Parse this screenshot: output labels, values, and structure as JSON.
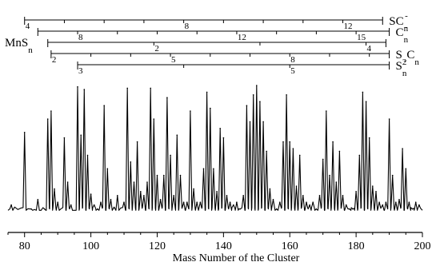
{
  "chart_data": {
    "type": "line",
    "title": "",
    "xlabel": "Mass Number of the Cluster",
    "ylabel": "",
    "xlim": [
      75,
      200
    ],
    "x_ticks": [
      80,
      100,
      120,
      140,
      160,
      180,
      200
    ],
    "x_tick_labels": [
      "80",
      "100",
      "120",
      "140",
      "160",
      "180",
      "200"
    ],
    "ylim": [
      0,
      1
    ],
    "grid": false,
    "peaks": [
      {
        "x": 76,
        "y": 0.08
      },
      {
        "x": 80,
        "y": 0.62
      },
      {
        "x": 82,
        "y": 0.05
      },
      {
        "x": 84,
        "y": 0.12
      },
      {
        "x": 86,
        "y": 0.05
      },
      {
        "x": 87,
        "y": 0.72
      },
      {
        "x": 88,
        "y": 0.78
      },
      {
        "x": 89,
        "y": 0.2
      },
      {
        "x": 90,
        "y": 0.1
      },
      {
        "x": 92,
        "y": 0.58
      },
      {
        "x": 93,
        "y": 0.25
      },
      {
        "x": 94,
        "y": 0.08
      },
      {
        "x": 96,
        "y": 0.96
      },
      {
        "x": 97,
        "y": 0.6
      },
      {
        "x": 98,
        "y": 0.94
      },
      {
        "x": 99,
        "y": 0.45
      },
      {
        "x": 100,
        "y": 0.16
      },
      {
        "x": 101,
        "y": 0.08
      },
      {
        "x": 102,
        "y": 0.05
      },
      {
        "x": 103,
        "y": 0.1
      },
      {
        "x": 104,
        "y": 0.82
      },
      {
        "x": 105,
        "y": 0.35
      },
      {
        "x": 106,
        "y": 0.12
      },
      {
        "x": 108,
        "y": 0.15
      },
      {
        "x": 110,
        "y": 0.1
      },
      {
        "x": 111,
        "y": 0.95
      },
      {
        "x": 112,
        "y": 0.4
      },
      {
        "x": 113,
        "y": 0.25
      },
      {
        "x": 114,
        "y": 0.55
      },
      {
        "x": 115,
        "y": 0.18
      },
      {
        "x": 116,
        "y": 0.15
      },
      {
        "x": 117,
        "y": 0.25
      },
      {
        "x": 118,
        "y": 0.95
      },
      {
        "x": 119,
        "y": 0.72
      },
      {
        "x": 120,
        "y": 0.3
      },
      {
        "x": 121,
        "y": 0.12
      },
      {
        "x": 122,
        "y": 0.3
      },
      {
        "x": 123,
        "y": 0.88
      },
      {
        "x": 124,
        "y": 0.45
      },
      {
        "x": 125,
        "y": 0.15
      },
      {
        "x": 126,
        "y": 0.6
      },
      {
        "x": 127,
        "y": 0.3
      },
      {
        "x": 128,
        "y": 0.1
      },
      {
        "x": 129,
        "y": 0.1
      },
      {
        "x": 130,
        "y": 0.78
      },
      {
        "x": 131,
        "y": 0.2
      },
      {
        "x": 132,
        "y": 0.1
      },
      {
        "x": 133,
        "y": 0.1
      },
      {
        "x": 134,
        "y": 0.35
      },
      {
        "x": 135,
        "y": 0.92
      },
      {
        "x": 136,
        "y": 0.8
      },
      {
        "x": 137,
        "y": 0.35
      },
      {
        "x": 138,
        "y": 0.18
      },
      {
        "x": 139,
        "y": 0.65
      },
      {
        "x": 140,
        "y": 0.58
      },
      {
        "x": 141,
        "y": 0.15
      },
      {
        "x": 142,
        "y": 0.1
      },
      {
        "x": 143,
        "y": 0.08
      },
      {
        "x": 144,
        "y": 0.1
      },
      {
        "x": 145,
        "y": 0.05
      },
      {
        "x": 146,
        "y": 0.15
      },
      {
        "x": 147,
        "y": 0.82
      },
      {
        "x": 148,
        "y": 0.7
      },
      {
        "x": 149,
        "y": 0.9
      },
      {
        "x": 150,
        "y": 0.97
      },
      {
        "x": 151,
        "y": 0.85
      },
      {
        "x": 152,
        "y": 0.7
      },
      {
        "x": 153,
        "y": 0.48
      },
      {
        "x": 154,
        "y": 0.2
      },
      {
        "x": 155,
        "y": 0.12
      },
      {
        "x": 156,
        "y": 0.05
      },
      {
        "x": 157,
        "y": 0.1
      },
      {
        "x": 158,
        "y": 0.55
      },
      {
        "x": 159,
        "y": 0.9
      },
      {
        "x": 160,
        "y": 0.55
      },
      {
        "x": 161,
        "y": 0.5
      },
      {
        "x": 162,
        "y": 0.22
      },
      {
        "x": 163,
        "y": 0.45
      },
      {
        "x": 164,
        "y": 0.15
      },
      {
        "x": 165,
        "y": 0.1
      },
      {
        "x": 166,
        "y": 0.08
      },
      {
        "x": 167,
        "y": 0.1
      },
      {
        "x": 168,
        "y": 0.05
      },
      {
        "x": 169,
        "y": 0.15
      },
      {
        "x": 170,
        "y": 0.42
      },
      {
        "x": 171,
        "y": 0.78
      },
      {
        "x": 172,
        "y": 0.3
      },
      {
        "x": 173,
        "y": 0.55
      },
      {
        "x": 174,
        "y": 0.25
      },
      {
        "x": 175,
        "y": 0.48
      },
      {
        "x": 176,
        "y": 0.15
      },
      {
        "x": 177,
        "y": 0.08
      },
      {
        "x": 178,
        "y": 0.05
      },
      {
        "x": 179,
        "y": 0.05
      },
      {
        "x": 180,
        "y": 0.18
      },
      {
        "x": 181,
        "y": 0.45
      },
      {
        "x": 182,
        "y": 0.92
      },
      {
        "x": 183,
        "y": 0.85
      },
      {
        "x": 184,
        "y": 0.58
      },
      {
        "x": 185,
        "y": 0.22
      },
      {
        "x": 186,
        "y": 0.18
      },
      {
        "x": 187,
        "y": 0.1
      },
      {
        "x": 188,
        "y": 0.08
      },
      {
        "x": 189,
        "y": 0.1
      },
      {
        "x": 190,
        "y": 0.72
      },
      {
        "x": 191,
        "y": 0.3
      },
      {
        "x": 192,
        "y": 0.1
      },
      {
        "x": 193,
        "y": 0.12
      },
      {
        "x": 194,
        "y": 0.5
      },
      {
        "x": 195,
        "y": 0.35
      },
      {
        "x": 196,
        "y": 0.1
      },
      {
        "x": 197,
        "y": 0.05
      },
      {
        "x": 198,
        "y": 0.1
      },
      {
        "x": 199,
        "y": 0.08
      }
    ],
    "series_ladders": [
      {
        "name": "SC",
        "sub": "n",
        "sup": "-",
        "start": 80,
        "end": 188,
        "spacing": 12,
        "labels": [
          {
            "n": "4",
            "x": 80
          },
          {
            "n": "8",
            "x": 128
          },
          {
            "n": "12",
            "x": 176
          }
        ]
      },
      {
        "name": "C",
        "sub": "n",
        "sup": "-",
        "start": 84,
        "end": 190,
        "spacing": 12,
        "labels": [
          {
            "n": "8",
            "x": 96
          },
          {
            "n": "12",
            "x": 144
          },
          {
            "n": "15",
            "x": 180
          }
        ]
      },
      {
        "name": "MnS",
        "sub": "n",
        "sup": "",
        "start": 87,
        "end": 189,
        "spacing": 32,
        "labels": [
          {
            "n": "2",
            "x": 119
          },
          {
            "n": "4",
            "x": 183
          }
        ]
      },
      {
        "name": "S",
        "sub": "2",
        "sup": "",
        "name2": "C",
        "sub2": "n",
        "start": 88,
        "end": 190,
        "spacing": 12,
        "labels": [
          {
            "n": "2",
            "x": 88
          },
          {
            "n": "5",
            "x": 124
          },
          {
            "n": "8",
            "x": 160
          }
        ]
      },
      {
        "name": "S",
        "sub": "n",
        "sup": "-",
        "start": 96,
        "end": 190,
        "spacing": 32,
        "labels": [
          {
            "n": "3",
            "x": 96
          },
          {
            "n": "5",
            "x": 160
          }
        ]
      }
    ]
  }
}
